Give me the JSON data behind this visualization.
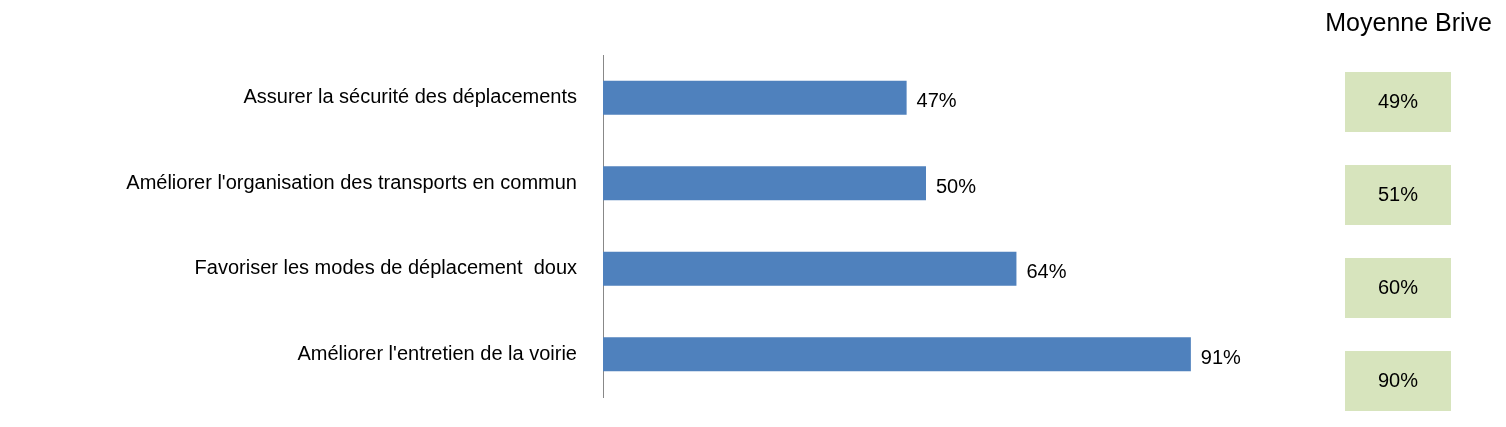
{
  "chart_data": [
    {
      "type": "bar",
      "orientation": "horizontal",
      "categories": [
        "Assurer la sécurité des déplacements",
        "Améliorer l'organisation des transports en commun",
        "Favoriser les modes de déplacement  doux",
        "Améliorer l'entretien de la voirie"
      ],
      "values": [
        47,
        50,
        64,
        91
      ],
      "color": "#4f81bd",
      "value_labels": [
        "47%",
        "50%",
        "64%",
        "91%"
      ],
      "tick_labels": "y",
      "grid": false,
      "legend": false
    },
    {
      "type": "other",
      "title": "Moyenne Brive",
      "annotations": [
        "49%",
        "51%",
        "60%",
        "90%"
      ]
    }
  ]
}
